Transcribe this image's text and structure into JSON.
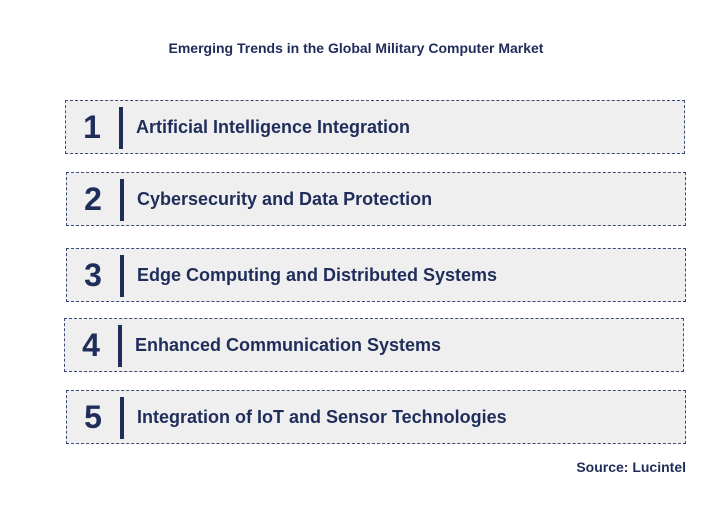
{
  "title": "Emerging Trends in the Global Military Computer Market",
  "items": [
    {
      "number": "1",
      "label": "Artificial Intelligence Integration"
    },
    {
      "number": "2",
      "label": "Cybersecurity and Data Protection"
    },
    {
      "number": "3",
      "label": "Edge Computing and Distributed Systems"
    },
    {
      "number": "4",
      "label": "Enhanced Communication Systems"
    },
    {
      "number": "5",
      "label": "Integration of IoT and Sensor Technologies"
    }
  ],
  "source": "Source: Lucintel",
  "colors": {
    "text": "#1f2d5a",
    "box_fill": "#efefef",
    "border": "#3b4a7a"
  }
}
